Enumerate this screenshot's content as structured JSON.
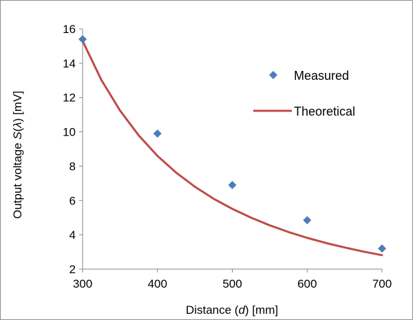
{
  "chart_data": {
    "type": "scatter",
    "xlabel": {
      "prefix": "Distance (",
      "var": "d",
      "suffix": ") [mm]"
    },
    "ylabel": {
      "prefix": "Output voltage ",
      "var": "S",
      "mid": "(",
      "var2": "λ",
      "suffix": ") [mV]"
    },
    "xlim": [
      300,
      700
    ],
    "ylim": [
      2,
      16
    ],
    "xticks": [
      300,
      400,
      500,
      600,
      700
    ],
    "yticks": [
      2,
      4,
      6,
      8,
      10,
      12,
      14,
      16
    ],
    "grid": false,
    "legend_position": "top-right",
    "series": [
      {
        "name": "Measured",
        "kind": "marker",
        "marker": "diamond",
        "color": "#4a7ebb",
        "x": [
          300,
          400,
          500,
          600,
          700
        ],
        "y": [
          15.4,
          9.9,
          6.9,
          4.85,
          3.2
        ]
      },
      {
        "name": "Theoretical",
        "kind": "line",
        "color": "#be4b48",
        "x": [
          300,
          325,
          350,
          375,
          400,
          425,
          450,
          475,
          500,
          525,
          550,
          575,
          600,
          625,
          650,
          675,
          700
        ],
        "y": [
          15.3,
          13.03,
          11.24,
          9.79,
          8.6,
          7.62,
          6.8,
          6.1,
          5.51,
          5.0,
          4.55,
          4.16,
          3.82,
          3.52,
          3.26,
          3.02,
          2.81
        ]
      }
    ]
  }
}
